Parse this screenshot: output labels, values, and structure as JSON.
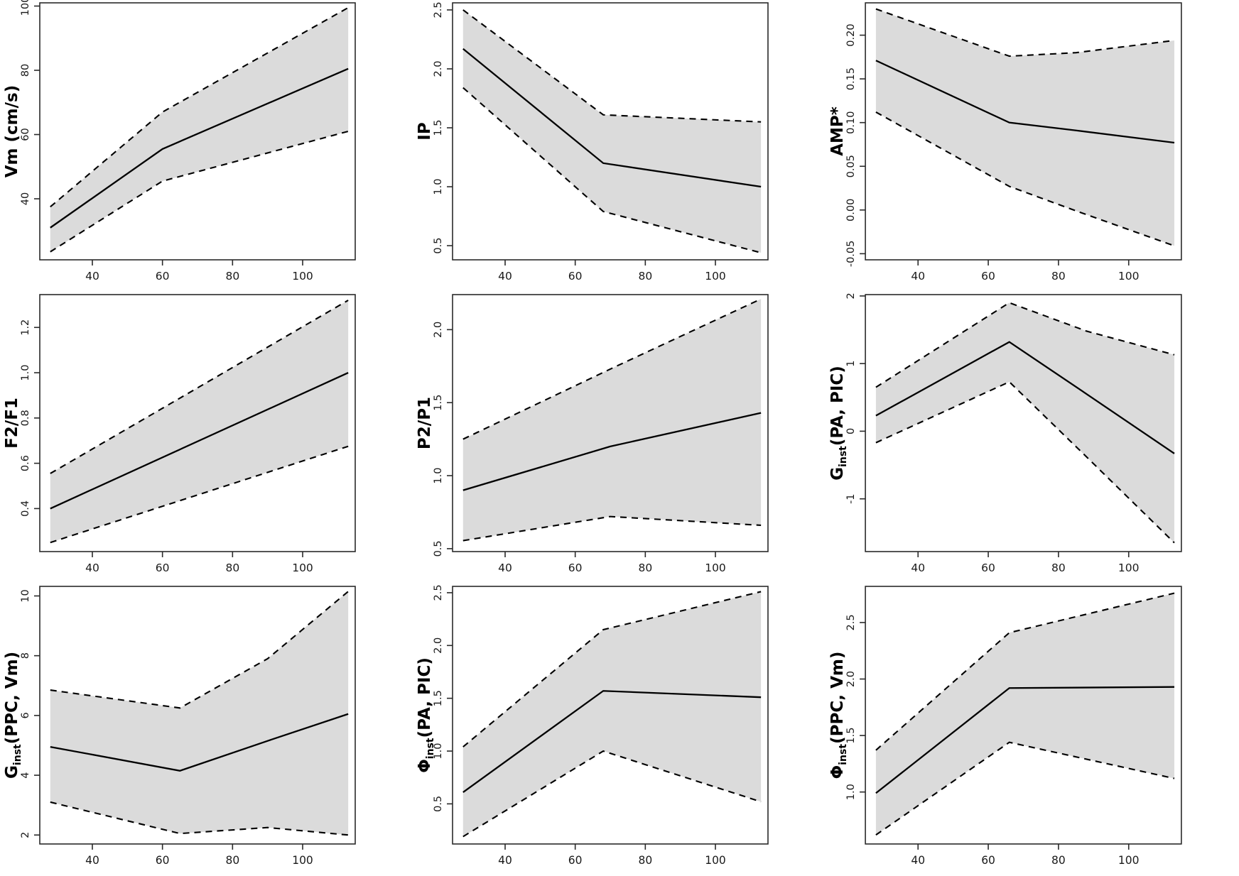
{
  "figure": {
    "background": "#ffffff",
    "band_fill": "#dbdbdb",
    "line_color": "#000000",
    "box_color": "#2a2a2a",
    "tick_color": "#2a2a2a",
    "tick_label_color": "#1a1a1a",
    "axis_label_color": "#000000",
    "dash_pattern": "9 7",
    "grid": "off",
    "legend": "none"
  },
  "chart_data": [
    {
      "type": "area",
      "panel_id": "vm",
      "ylabel_parts": [
        {
          "text": "Vm (cm/s)",
          "sub": false
        }
      ],
      "xlabel": "",
      "xlim": [
        25,
        115
      ],
      "ylim": [
        21,
        101
      ],
      "xticks": [
        40,
        60,
        80,
        100
      ],
      "xtick_labels": [
        "40",
        "60",
        "80",
        "100"
      ],
      "yticks": [
        40,
        60,
        80,
        100
      ],
      "ytick_labels": [
        "40",
        "60",
        "80",
        "100"
      ],
      "x": [
        28,
        60,
        113
      ],
      "series": [
        {
          "name": "mean",
          "style": "solid",
          "values": [
            31,
            55.5,
            80.5
          ]
        },
        {
          "name": "upper_ci",
          "style": "dashed",
          "values": [
            37.5,
            67,
            99.5
          ]
        },
        {
          "name": "lower_ci",
          "style": "dashed",
          "values": [
            23.5,
            45.5,
            61
          ]
        }
      ]
    },
    {
      "type": "area",
      "panel_id": "ip",
      "ylabel_parts": [
        {
          "text": "IP",
          "sub": false
        }
      ],
      "xlabel": "",
      "xlim": [
        25,
        115
      ],
      "ylim": [
        0.38,
        2.56
      ],
      "xticks": [
        40,
        60,
        80,
        100
      ],
      "xtick_labels": [
        "40",
        "60",
        "80",
        "100"
      ],
      "yticks": [
        0.5,
        1.0,
        1.5,
        2.0,
        2.5
      ],
      "ytick_labels": [
        "0.5",
        "1.0",
        "1.5",
        "2.0",
        "2.5"
      ],
      "x": [
        28,
        68,
        113
      ],
      "series": [
        {
          "name": "mean",
          "style": "solid",
          "values": [
            2.17,
            1.2,
            1.0
          ]
        },
        {
          "name": "upper_ci",
          "style": "dashed",
          "values": [
            2.5,
            1.61,
            1.55
          ]
        },
        {
          "name": "lower_ci",
          "style": "dashed",
          "values": [
            1.84,
            0.79,
            0.44
          ]
        }
      ]
    },
    {
      "type": "area",
      "panel_id": "amp",
      "ylabel_parts": [
        {
          "text": "AMP*",
          "sub": false
        }
      ],
      "xlabel": "",
      "xlim": [
        25,
        115
      ],
      "ylim": [
        -0.057,
        0.237
      ],
      "xticks": [
        40,
        60,
        80,
        100
      ],
      "xtick_labels": [
        "40",
        "60",
        "80",
        "100"
      ],
      "yticks": [
        -0.05,
        0.0,
        0.05,
        0.1,
        0.15,
        0.2
      ],
      "ytick_labels": [
        "-0.05",
        "0.00",
        "0.05",
        "0.10",
        "0.15",
        "0.20"
      ],
      "x": [
        28,
        66,
        85,
        113
      ],
      "series": [
        {
          "name": "mean",
          "style": "solid",
          "values": [
            0.171,
            0.1,
            0.091,
            0.077
          ]
        },
        {
          "name": "upper_ci",
          "style": "dashed",
          "values": [
            0.23,
            0.176,
            0.18,
            0.194
          ]
        },
        {
          "name": "lower_ci",
          "style": "dashed",
          "values": [
            0.112,
            0.027,
            -0.001,
            -0.041
          ]
        }
      ]
    },
    {
      "type": "area",
      "panel_id": "f2f1",
      "ylabel_parts": [
        {
          "text": "F2/F1",
          "sub": false
        }
      ],
      "xlabel": "",
      "xlim": [
        25,
        115
      ],
      "ylim": [
        0.21,
        1.345
      ],
      "xticks": [
        40,
        60,
        80,
        100
      ],
      "xtick_labels": [
        "40",
        "60",
        "80",
        "100"
      ],
      "yticks": [
        0.4,
        0.6,
        0.8,
        1.0,
        1.2
      ],
      "ytick_labels": [
        "0.4",
        "0.6",
        "0.8",
        "1.0",
        "1.2"
      ],
      "x": [
        28,
        113
      ],
      "series": [
        {
          "name": "mean",
          "style": "solid",
          "values": [
            0.4,
            1.0
          ]
        },
        {
          "name": "upper_ci",
          "style": "dashed",
          "values": [
            0.555,
            1.32
          ]
        },
        {
          "name": "lower_ci",
          "style": "dashed",
          "values": [
            0.25,
            0.675
          ]
        }
      ]
    },
    {
      "type": "area",
      "panel_id": "p2p1",
      "ylabel_parts": [
        {
          "text": "P2/P1",
          "sub": false
        }
      ],
      "xlabel": "",
      "xlim": [
        25,
        115
      ],
      "ylim": [
        0.48,
        2.24
      ],
      "xticks": [
        40,
        60,
        80,
        100
      ],
      "xtick_labels": [
        "40",
        "60",
        "80",
        "100"
      ],
      "yticks": [
        0.5,
        1.0,
        1.5,
        2.0
      ],
      "ytick_labels": [
        "0.5",
        "1.0",
        "1.5",
        "2.0"
      ],
      "x": [
        28,
        70,
        113
      ],
      "series": [
        {
          "name": "mean",
          "style": "solid",
          "values": [
            0.9,
            1.2,
            1.43
          ]
        },
        {
          "name": "upper_ci",
          "style": "dashed",
          "values": [
            1.25,
            1.73,
            2.21
          ]
        },
        {
          "name": "lower_ci",
          "style": "dashed",
          "values": [
            0.555,
            0.72,
            0.66
          ]
        }
      ]
    },
    {
      "type": "area",
      "panel_id": "ginst-pa-pic",
      "ylabel_parts": [
        {
          "text": "G",
          "sub": false
        },
        {
          "text": "inst",
          "sub": true
        },
        {
          "text": "(PA, PIC)",
          "sub": false
        }
      ],
      "xlabel": "",
      "xlim": [
        25,
        115
      ],
      "ylim": [
        -1.78,
        2.02
      ],
      "xticks": [
        40,
        60,
        80,
        100
      ],
      "xtick_labels": [
        "40",
        "60",
        "80",
        "100"
      ],
      "yticks": [
        -1,
        0,
        1,
        2
      ],
      "ytick_labels": [
        "-1",
        "0",
        "1",
        "2"
      ],
      "x": [
        28,
        66,
        88,
        113
      ],
      "series": [
        {
          "name": "mean",
          "style": "solid",
          "values": [
            0.23,
            1.32,
            0.55,
            -0.33
          ]
        },
        {
          "name": "upper_ci",
          "style": "dashed",
          "values": [
            0.65,
            1.9,
            1.48,
            1.13
          ]
        },
        {
          "name": "lower_ci",
          "style": "dashed",
          "values": [
            -0.17,
            0.73,
            -0.38,
            -1.65
          ]
        }
      ]
    },
    {
      "type": "area",
      "panel_id": "ginst-ppc-vm",
      "ylabel_parts": [
        {
          "text": "G",
          "sub": false
        },
        {
          "text": "inst",
          "sub": true
        },
        {
          "text": "(PPC, Vm)",
          "sub": false
        }
      ],
      "xlabel": "",
      "xlim": [
        25,
        115
      ],
      "ylim": [
        1.7,
        10.32
      ],
      "xticks": [
        40,
        60,
        80,
        100
      ],
      "xtick_labels": [
        "40",
        "60",
        "80",
        "100"
      ],
      "yticks": [
        2,
        4,
        6,
        8,
        10
      ],
      "ytick_labels": [
        "2",
        "4",
        "6",
        "8",
        "10"
      ],
      "x": [
        28,
        65,
        90,
        113
      ],
      "series": [
        {
          "name": "mean",
          "style": "solid",
          "values": [
            4.95,
            4.15,
            5.15,
            6.05
          ]
        },
        {
          "name": "upper_ci",
          "style": "dashed",
          "values": [
            6.85,
            6.25,
            7.9,
            10.15
          ]
        },
        {
          "name": "lower_ci",
          "style": "dashed",
          "values": [
            3.1,
            2.05,
            2.25,
            2.0
          ]
        }
      ]
    },
    {
      "type": "area",
      "panel_id": "phi-inst-pa-pic",
      "ylabel_parts": [
        {
          "text": "Φ",
          "sub": false
        },
        {
          "text": "inst",
          "sub": true
        },
        {
          "text": "(PA, PIC)",
          "sub": false
        }
      ],
      "xlabel": "",
      "xlim": [
        25,
        115
      ],
      "ylim": [
        0.12,
        2.56
      ],
      "xticks": [
        40,
        60,
        80,
        100
      ],
      "xtick_labels": [
        "40",
        "60",
        "80",
        "100"
      ],
      "yticks": [
        0.5,
        1.0,
        1.5,
        2.0,
        2.5
      ],
      "ytick_labels": [
        "0.5",
        "1.0",
        "1.5",
        "2.0",
        "2.5"
      ],
      "x": [
        28,
        68,
        113
      ],
      "series": [
        {
          "name": "mean",
          "style": "solid",
          "values": [
            0.61,
            1.57,
            1.51
          ]
        },
        {
          "name": "upper_ci",
          "style": "dashed",
          "values": [
            1.04,
            2.15,
            2.51
          ]
        },
        {
          "name": "lower_ci",
          "style": "dashed",
          "values": [
            0.19,
            1.0,
            0.52
          ]
        }
      ]
    },
    {
      "type": "area",
      "panel_id": "phi-inst-ppc-vm",
      "ylabel_parts": [
        {
          "text": "Φ",
          "sub": false
        },
        {
          "text": "inst",
          "sub": true
        },
        {
          "text": "(PPC, Vm)",
          "sub": false
        }
      ],
      "xlabel": "",
      "xlim": [
        25,
        115
      ],
      "ylim": [
        0.54,
        2.82
      ],
      "xticks": [
        40,
        60,
        80,
        100
      ],
      "xtick_labels": [
        "40",
        "60",
        "80",
        "100"
      ],
      "yticks": [
        1.0,
        1.5,
        2.0,
        2.5
      ],
      "ytick_labels": [
        "1.0",
        "1.5",
        "2.0",
        "2.5"
      ],
      "x": [
        28,
        66,
        113
      ],
      "series": [
        {
          "name": "mean",
          "style": "solid",
          "values": [
            0.99,
            1.92,
            1.93
          ]
        },
        {
          "name": "upper_ci",
          "style": "dashed",
          "values": [
            1.37,
            2.41,
            2.76
          ]
        },
        {
          "name": "lower_ci",
          "style": "dashed",
          "values": [
            0.62,
            1.44,
            1.12
          ]
        }
      ]
    }
  ]
}
